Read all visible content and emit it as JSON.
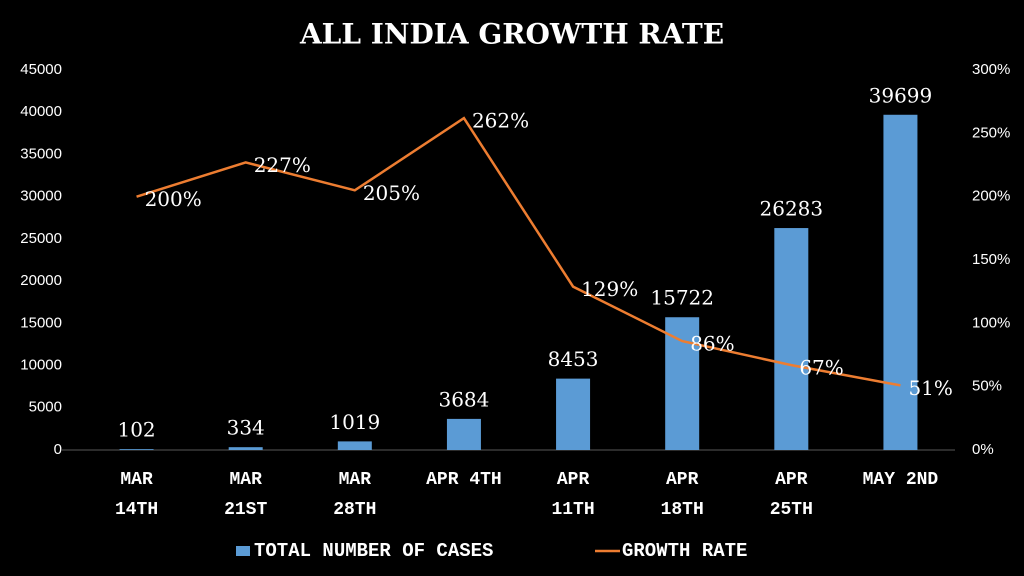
{
  "chart_data": {
    "type": "bar-line",
    "title": "ALL INDIA GROWTH RATE",
    "categories": [
      "MAR 14TH",
      "MAR 21ST",
      "MAR 28TH",
      "APR 4TH",
      "APR 11TH",
      "APR 18TH",
      "APR 25TH",
      "MAY 2ND"
    ],
    "series": [
      {
        "name": "TOTAL NUMBER OF CASES",
        "type": "bar",
        "color": "#5b9bd5",
        "values": [
          102,
          334,
          1019,
          3684,
          8453,
          15722,
          26283,
          39699
        ]
      },
      {
        "name": "GROWTH RATE",
        "type": "line",
        "axis": "y2",
        "color": "#ed7d31",
        "values": [
          200,
          227,
          205,
          262,
          129,
          86,
          67,
          51
        ],
        "value_labels": [
          "200%",
          "227%",
          "205%",
          "262%",
          "129%",
          "86%",
          "67%",
          "51%"
        ]
      }
    ],
    "ylim": [
      0,
      45000
    ],
    "yticks": [
      0,
      5000,
      10000,
      15000,
      20000,
      25000,
      30000,
      35000,
      40000,
      45000
    ],
    "y2lim": [
      0,
      300
    ],
    "y2ticks": [
      {
        "value": 0,
        "label": "0%"
      },
      {
        "value": 50,
        "label": "50%"
      },
      {
        "value": 100,
        "label": "100%"
      },
      {
        "value": 150,
        "label": "150%"
      },
      {
        "value": 200,
        "label": "200%"
      },
      {
        "value": 250,
        "label": "250%"
      },
      {
        "value": 300,
        "label": "300%"
      }
    ],
    "legend": "bottom",
    "grid": false
  }
}
